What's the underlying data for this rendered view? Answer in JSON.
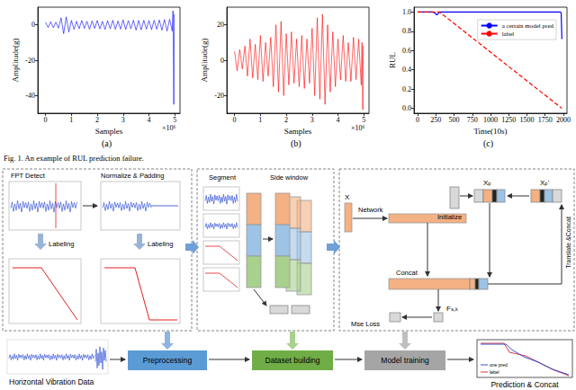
{
  "chart_data": [
    {
      "type": "line",
      "panel_label": "(a)",
      "x_label": "Samples",
      "x_exponent_label": "×10⁶",
      "y_label": "Amplitude(g)",
      "color": "#0000ff",
      "grid": false,
      "xlim": [
        -0.3,
        5.2
      ],
      "xticks": [
        0,
        1,
        2,
        3,
        4,
        5
      ],
      "ylim": [
        -50,
        10
      ],
      "yticks": [
        -40,
        -20,
        0
      ],
      "x": [
        0,
        0.1,
        0.2,
        0.3,
        0.4,
        0.5,
        0.6,
        0.7,
        0.8,
        0.9,
        1.0,
        1.1,
        1.2,
        1.3,
        1.4,
        1.5,
        1.6,
        1.7,
        1.8,
        1.9,
        2.0,
        2.1,
        2.2,
        2.3,
        2.4,
        2.5,
        2.6,
        2.7,
        2.8,
        2.9,
        3.0,
        3.1,
        3.2,
        3.3,
        3.4,
        3.5,
        3.6,
        3.7,
        3.8,
        3.9,
        4.0,
        4.1,
        4.2,
        4.3,
        4.4,
        4.5,
        4.6,
        4.7,
        4.8,
        4.9,
        4.93,
        4.96,
        4.98
      ],
      "values": [
        1.5,
        -1.5,
        1.8,
        -1.6,
        1.5,
        -1.8,
        4,
        -5,
        4.5,
        -4,
        2.5,
        -2.5,
        2,
        -2.2,
        2.5,
        -2,
        2,
        -2.5,
        2.2,
        -2,
        2.5,
        -2.3,
        2,
        -2.6,
        2.4,
        -2.2,
        2.6,
        -2.5,
        2.2,
        -2.4,
        2.8,
        -2.6,
        2.4,
        -2.2,
        2.6,
        -3,
        2.5,
        -2.8,
        2.6,
        -2.4,
        2.5,
        -2.7,
        2.6,
        -2.5,
        2.8,
        -3,
        3,
        -3.5,
        3.2,
        -3.5,
        8,
        -45,
        6
      ]
    },
    {
      "type": "line",
      "panel_label": "(b)",
      "x_label": "Samples",
      "x_exponent_label": "×10⁶",
      "y_label": "Amplitude(g)",
      "color": "#ff0000",
      "grid": false,
      "xlim": [
        -0.3,
        5.2
      ],
      "xticks": [
        0,
        1,
        2,
        3,
        4,
        5
      ],
      "ylim": [
        -30,
        30
      ],
      "yticks": [
        -20,
        0,
        20
      ],
      "x": [
        0,
        0.1,
        0.2,
        0.3,
        0.4,
        0.5,
        0.6,
        0.7,
        0.8,
        0.9,
        1.0,
        1.1,
        1.2,
        1.3,
        1.4,
        1.5,
        1.6,
        1.7,
        1.8,
        1.9,
        2.0,
        2.1,
        2.2,
        2.3,
        2.4,
        2.5,
        2.6,
        2.7,
        2.8,
        2.9,
        3.0,
        3.1,
        3.2,
        3.3,
        3.4,
        3.5,
        3.6,
        3.7,
        3.8,
        3.9,
        4.0,
        4.1,
        4.2,
        4.3,
        4.4,
        4.5,
        4.6,
        4.7,
        4.8,
        4.9,
        4.93,
        4.96,
        4.98
      ],
      "values": [
        5,
        -6,
        6,
        -5,
        8,
        -9,
        12,
        -10,
        9,
        -11,
        14,
        -12,
        10,
        -9,
        13,
        -15,
        20,
        -18,
        22,
        -20,
        15,
        -14,
        16,
        -13,
        12,
        -15,
        14,
        -16,
        12,
        -13,
        18,
        -20,
        24,
        -22,
        26,
        -25,
        20,
        -18,
        16,
        -15,
        12,
        -11,
        14,
        -12,
        10,
        -12,
        13,
        -11,
        12,
        -14,
        10,
        -28,
        8
      ]
    },
    {
      "type": "line",
      "panel_label": "(c)",
      "x_label": "Time(10s)",
      "y_label": "RUL",
      "grid": false,
      "legend": "upper right",
      "xlim": [
        -50,
        2050
      ],
      "xticks": [
        0,
        250,
        500,
        750,
        1000,
        1250,
        1500,
        1750,
        2000
      ],
      "ylim": [
        -0.05,
        1.05
      ],
      "yticks": [
        {
          "value": 0,
          "label": "0.0"
        },
        {
          "value": 0.2,
          "label": "0.2"
        },
        {
          "value": 0.4,
          "label": "0.4"
        },
        {
          "value": 0.6,
          "label": "0.6"
        },
        {
          "value": 0.8,
          "label": "0.8"
        },
        {
          "value": 1,
          "label": "1.0"
        }
      ],
      "series": [
        {
          "name": "a certain model pred",
          "color": "#0000ff",
          "line_style": "solid",
          "x": [
            0,
            100,
            200,
            240,
            260,
            280,
            300,
            350,
            500,
            1000,
            1500,
            1900,
            1960,
            1970,
            1980
          ],
          "values": [
            1,
            1,
            1,
            0.99,
            0.97,
            0.98,
            1,
            1,
            1,
            1,
            1,
            1,
            1,
            0.99,
            0.72
          ]
        },
        {
          "name": "label",
          "color": "#ff0000",
          "line_style": "dashed",
          "x": [
            0,
            300,
            1980
          ],
          "values": [
            1,
            1,
            0
          ]
        }
      ]
    }
  ],
  "caption": "Fig. 1.  An example of RUL prediction failure.",
  "diagram": {
    "preprocessing_panel": {
      "fpt": "FPT Detect",
      "normalize": "Normalize & Padding",
      "labeling_1": "Labeling",
      "labeling_2": "Labeling"
    },
    "dataset_panel": {
      "segment": "Segment",
      "window": "Side window"
    },
    "model_panel": {
      "input": "X",
      "network": "Network",
      "initialize": "Initialize",
      "xp": "Xₚ",
      "xp_prime": "Xₚ'",
      "translate": "Translate &Concat",
      "concat": "Concat",
      "feature": "Fₛ,ₖ",
      "loss": "Mse Loss"
    },
    "flow": {
      "input": "Horizontal Vibration Data",
      "steps": [
        "Preprocessing",
        "Dataset building",
        "Model training"
      ],
      "output": "Prediction & Concat",
      "output_legend": [
        "one pred",
        "label"
      ]
    }
  }
}
